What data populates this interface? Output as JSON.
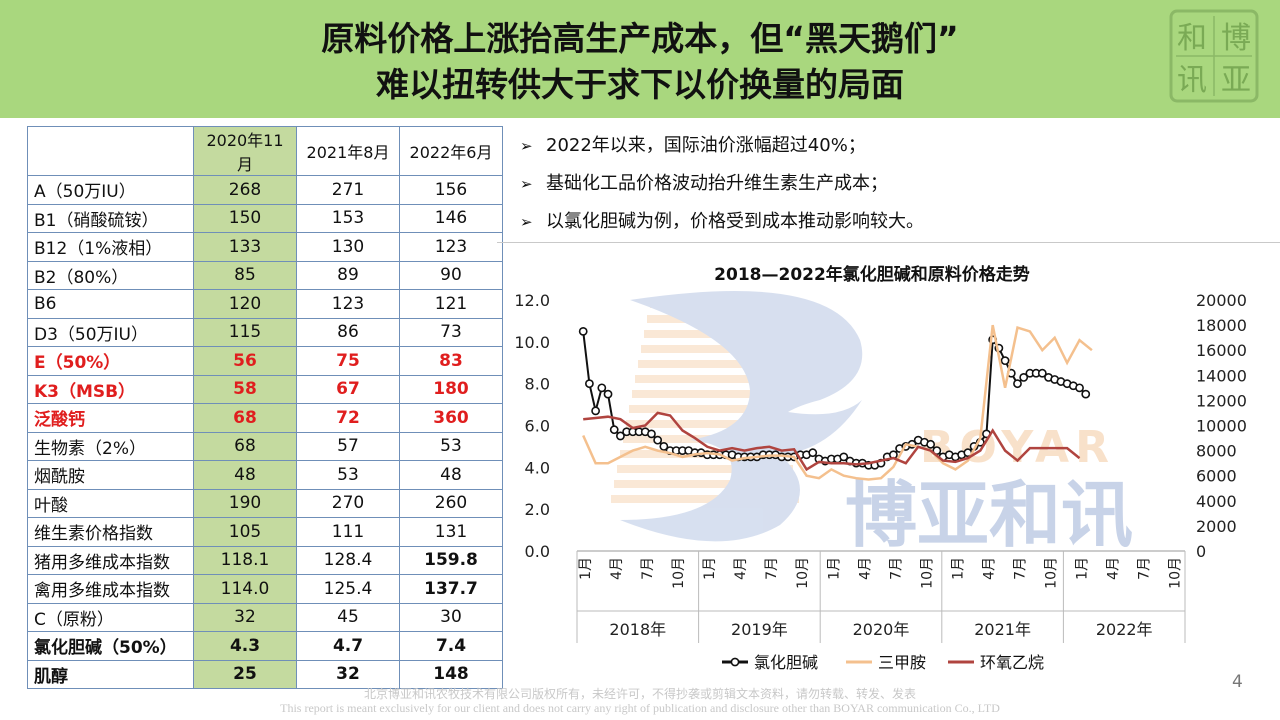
{
  "header": {
    "title_line1": "原料价格上涨抬高生产成本，但“黑天鹅们”",
    "title_line2": "难以扭转供大于求下以价换量的局面"
  },
  "seal": {
    "chars": [
      "和",
      "博",
      "讯",
      "亚"
    ]
  },
  "table": {
    "headers": [
      "2020年11月",
      "2021年8月",
      "2022年6月"
    ],
    "rows": [
      {
        "label": "A（50万IU）",
        "v": [
          "268",
          "271",
          "156"
        ],
        "style": ""
      },
      {
        "label": "B1（硝酸硫铵）",
        "v": [
          "150",
          "153",
          "146"
        ],
        "style": ""
      },
      {
        "label": "B12（1%液相）",
        "v": [
          "133",
          "130",
          "123"
        ],
        "style": ""
      },
      {
        "label": "B2（80%）",
        "v": [
          "85",
          "89",
          "90"
        ],
        "style": ""
      },
      {
        "label": "B6",
        "v": [
          "120",
          "123",
          "121"
        ],
        "style": ""
      },
      {
        "label": "D3（50万IU）",
        "v": [
          "115",
          "86",
          "73"
        ],
        "style": ""
      },
      {
        "label": "E（50%）",
        "v": [
          "56",
          "75",
          "83"
        ],
        "style": "red"
      },
      {
        "label": "K3（MSB）",
        "v": [
          "58",
          "67",
          "180"
        ],
        "style": "red"
      },
      {
        "label": "泛酸钙",
        "v": [
          "68",
          "72",
          "360"
        ],
        "style": "red"
      },
      {
        "label": "生物素（2%）",
        "v": [
          "68",
          "57",
          "53"
        ],
        "style": ""
      },
      {
        "label": "烟酰胺",
        "v": [
          "48",
          "53",
          "48"
        ],
        "style": ""
      },
      {
        "label": "叶酸",
        "v": [
          "190",
          "270",
          "260"
        ],
        "style": ""
      },
      {
        "label": "维生素价格指数",
        "v": [
          "105",
          "111",
          "131"
        ],
        "style": ""
      },
      {
        "label": "猪用多维成本指数",
        "v": [
          "118.1",
          "128.4",
          "159.8"
        ],
        "style": "lastbold"
      },
      {
        "label": "禽用多维成本指数",
        "v": [
          "114.0",
          "125.4",
          "137.7"
        ],
        "style": "lastbold"
      },
      {
        "label": "C（原粉）",
        "v": [
          "32",
          "45",
          "30"
        ],
        "style": ""
      },
      {
        "label": "氯化胆碱（50%）",
        "v": [
          "4.3",
          "4.7",
          "7.4"
        ],
        "style": "bold"
      },
      {
        "label": "肌醇",
        "v": [
          "25",
          "32",
          "148"
        ],
        "style": "bold"
      }
    ]
  },
  "bullets": {
    "marker": "➢",
    "items": [
      "2022年以来，国际油价涨幅超过40%；",
      "基础化工品价格波动抬升维生素生产成本；",
      "以氯化胆碱为例，价格受到成本推动影响较大。"
    ]
  },
  "chart_data": {
    "type": "line",
    "title": "2018—2022年氯化胆碱和原料价格走势",
    "y_left": {
      "min": 0,
      "max": 12,
      "ticks": [
        "0.0",
        "2.0",
        "4.0",
        "6.0",
        "8.0",
        "10.0",
        "12.0"
      ]
    },
    "y_right": {
      "min": 0,
      "max": 20000,
      "ticks": [
        "0",
        "2000",
        "4000",
        "6000",
        "8000",
        "10000",
        "12000",
        "14000",
        "16000",
        "18000",
        "20000"
      ]
    },
    "month_labels": [
      "1月",
      "4月",
      "7月",
      "10月"
    ],
    "years": [
      "2018年",
      "2019年",
      "2020年",
      "2021年",
      "2022年"
    ],
    "series": [
      {
        "name": "氯化胆碱",
        "axis": "left",
        "color": "#111111",
        "marker": "circle",
        "points": [
          [
            0,
            10.5
          ],
          [
            0.5,
            8.0
          ],
          [
            1,
            6.7
          ],
          [
            1.5,
            7.8
          ],
          [
            2,
            7.5
          ],
          [
            2.5,
            5.8
          ],
          [
            3,
            5.5
          ],
          [
            3.5,
            5.7
          ],
          [
            4,
            5.7
          ],
          [
            4.5,
            5.7
          ],
          [
            5,
            5.7
          ],
          [
            5.5,
            5.6
          ],
          [
            6,
            5.3
          ],
          [
            6.5,
            5.0
          ],
          [
            7,
            4.8
          ],
          [
            7.5,
            4.8
          ],
          [
            8,
            4.8
          ],
          [
            8.5,
            4.8
          ],
          [
            9,
            4.7
          ],
          [
            9.5,
            4.7
          ],
          [
            10,
            4.6
          ],
          [
            10.5,
            4.6
          ],
          [
            11,
            4.6
          ],
          [
            11.5,
            4.6
          ],
          [
            12,
            4.6
          ],
          [
            12.5,
            4.5
          ],
          [
            13,
            4.5
          ],
          [
            13.5,
            4.5
          ],
          [
            14,
            4.5
          ],
          [
            14.5,
            4.6
          ],
          [
            15,
            4.6
          ],
          [
            15.5,
            4.6
          ],
          [
            16,
            4.5
          ],
          [
            16.5,
            4.5
          ],
          [
            17,
            4.5
          ],
          [
            17.5,
            4.6
          ],
          [
            18,
            4.6
          ],
          [
            18.5,
            4.7
          ],
          [
            19,
            4.4
          ],
          [
            19.5,
            4.3
          ],
          [
            20,
            4.4
          ],
          [
            20.5,
            4.4
          ],
          [
            21,
            4.5
          ],
          [
            21.5,
            4.3
          ],
          [
            22,
            4.2
          ],
          [
            22.5,
            4.2
          ],
          [
            23,
            4.1
          ],
          [
            23.5,
            4.1
          ],
          [
            24,
            4.2
          ],
          [
            24.5,
            4.5
          ],
          [
            25,
            4.6
          ],
          [
            25.5,
            4.9
          ],
          [
            26,
            5.0
          ],
          [
            26.5,
            5.1
          ],
          [
            27,
            5.3
          ],
          [
            27.5,
            5.2
          ],
          [
            28,
            5.1
          ],
          [
            28.5,
            4.8
          ],
          [
            29,
            4.5
          ],
          [
            29.5,
            4.6
          ],
          [
            30,
            4.5
          ],
          [
            30.5,
            4.6
          ],
          [
            31,
            4.7
          ],
          [
            31.5,
            5.0
          ],
          [
            32,
            5.2
          ],
          [
            32.5,
            5.6
          ],
          [
            33,
            10.1
          ],
          [
            33.5,
            9.7
          ],
          [
            34,
            9.1
          ],
          [
            34.5,
            8.5
          ],
          [
            35,
            8.0
          ],
          [
            35.5,
            8.3
          ],
          [
            36,
            8.5
          ],
          [
            36.5,
            8.5
          ],
          [
            37,
            8.5
          ],
          [
            37.5,
            8.3
          ],
          [
            38,
            8.2
          ],
          [
            38.5,
            8.1
          ],
          [
            39,
            8.0
          ],
          [
            39.5,
            7.9
          ],
          [
            40,
            7.8
          ],
          [
            40.5,
            7.5
          ]
        ]
      },
      {
        "name": "三甲胺",
        "axis": "right",
        "color": "#f4c08e",
        "marker": "none",
        "points": [
          [
            0,
            9200
          ],
          [
            1,
            7000
          ],
          [
            2,
            7000
          ],
          [
            3,
            7500
          ],
          [
            4,
            8000
          ],
          [
            5,
            8300
          ],
          [
            6,
            8000
          ],
          [
            7,
            7800
          ],
          [
            8,
            7500
          ],
          [
            9,
            7700
          ],
          [
            10,
            7800
          ],
          [
            11,
            7700
          ],
          [
            12,
            7200
          ],
          [
            13,
            7400
          ],
          [
            14,
            7500
          ],
          [
            15,
            7600
          ],
          [
            16,
            7600
          ],
          [
            17,
            7500
          ],
          [
            18,
            6000
          ],
          [
            19,
            5800
          ],
          [
            20,
            6500
          ],
          [
            21,
            6000
          ],
          [
            22,
            5800
          ],
          [
            23,
            5700
          ],
          [
            24,
            5800
          ],
          [
            25,
            6700
          ],
          [
            26,
            8500
          ],
          [
            27,
            8300
          ],
          [
            28,
            8000
          ],
          [
            29,
            7000
          ],
          [
            30,
            6500
          ],
          [
            31,
            7200
          ],
          [
            32,
            9000
          ],
          [
            33,
            18000
          ],
          [
            34,
            13000
          ],
          [
            35,
            17800
          ],
          [
            36,
            17500
          ],
          [
            37,
            16000
          ],
          [
            38,
            17000
          ],
          [
            39,
            15000
          ],
          [
            40,
            16800
          ],
          [
            41,
            16000
          ]
        ]
      },
      {
        "name": "环氧乙烷",
        "axis": "right",
        "color": "#b0443f",
        "marker": "none",
        "points": [
          [
            0,
            10500
          ],
          [
            1,
            10600
          ],
          [
            2,
            10700
          ],
          [
            3,
            10500
          ],
          [
            4,
            9800
          ],
          [
            5,
            10000
          ],
          [
            6,
            11000
          ],
          [
            7,
            10800
          ],
          [
            8,
            9600
          ],
          [
            9,
            9000
          ],
          [
            10,
            8300
          ],
          [
            11,
            8000
          ],
          [
            12,
            8200
          ],
          [
            13,
            8000
          ],
          [
            14,
            8200
          ],
          [
            15,
            8300
          ],
          [
            16,
            8000
          ],
          [
            17,
            8100
          ],
          [
            18,
            6500
          ],
          [
            19,
            7100
          ],
          [
            20,
            7000
          ],
          [
            21,
            7000
          ],
          [
            22,
            6900
          ],
          [
            23,
            7000
          ],
          [
            24,
            7200
          ],
          [
            25,
            7400
          ],
          [
            26,
            7000
          ],
          [
            27,
            8300
          ],
          [
            28,
            8000
          ],
          [
            29,
            7200
          ],
          [
            30,
            7100
          ],
          [
            31,
            7400
          ],
          [
            32,
            8000
          ],
          [
            33,
            9600
          ],
          [
            34,
            8000
          ],
          [
            35,
            7200
          ],
          [
            36,
            8200
          ],
          [
            37,
            8200
          ],
          [
            38,
            8200
          ],
          [
            39,
            8200
          ],
          [
            40,
            7400
          ]
        ]
      }
    ],
    "legend_position": "bottom",
    "watermark": {
      "brand_en": "BOYAR",
      "brand_zh": "博亚和讯"
    }
  },
  "page_number": "4",
  "footer": {
    "line1": "北京博亚和讯农牧技术有限公司版权所有，未经许可，不得抄袭或剪辑文本资料，请勿转载、转发、发表",
    "line2": "This report is meant exclusively for our client and does not carry any right of publication and disclosure other than BOYAR communication Co., LTD"
  }
}
